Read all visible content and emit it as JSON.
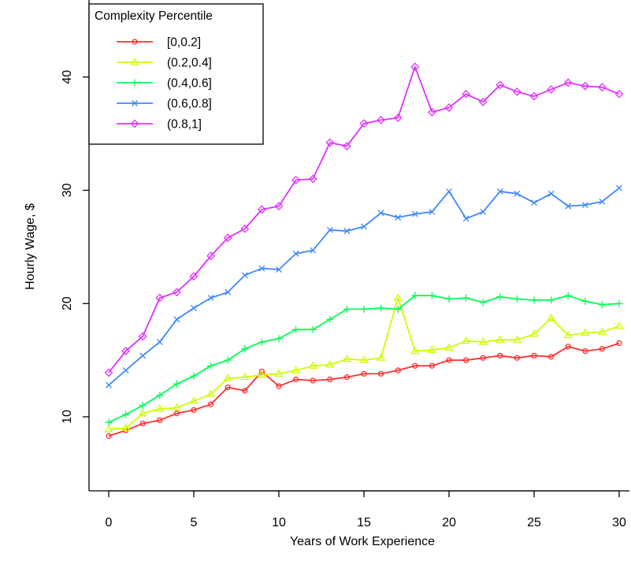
{
  "chart_data": {
    "type": "line",
    "title": "",
    "xlabel": "Years of Work Experience",
    "ylabel": "Hourly Wage, $",
    "xlim": [
      -1.2,
      31.2
    ],
    "ylim": [
      3.3,
      45.5
    ],
    "x_ticks": [
      0,
      5,
      10,
      15,
      20,
      25,
      30
    ],
    "y_ticks": [
      10,
      20,
      30,
      40
    ],
    "legend_title": "Complexity Percentile",
    "legend_position": "top-left",
    "grid": false,
    "x": [
      0,
      1,
      2,
      3,
      4,
      5,
      6,
      7,
      8,
      9,
      10,
      11,
      12,
      13,
      14,
      15,
      16,
      17,
      18,
      19,
      20,
      21,
      22,
      23,
      24,
      25,
      26,
      27,
      28,
      29,
      30
    ],
    "series": [
      {
        "name": "[0,0.2]",
        "color": "#ff3030",
        "marker": "circle",
        "values": [
          8.3,
          8.8,
          9.4,
          9.7,
          10.3,
          10.6,
          11.1,
          12.6,
          12.3,
          14.0,
          12.7,
          13.3,
          13.2,
          13.3,
          13.5,
          13.8,
          13.8,
          14.1,
          14.5,
          14.5,
          15.0,
          15.0,
          15.2,
          15.4,
          15.2,
          15.4,
          15.3,
          16.2,
          15.8,
          16.0,
          16.5
        ]
      },
      {
        "name": "(0.2,0.4]",
        "color": "#ccff00",
        "marker": "triangle",
        "values": [
          8.9,
          9.0,
          10.3,
          10.7,
          10.8,
          11.4,
          12.0,
          13.4,
          13.5,
          13.7,
          13.8,
          14.1,
          14.5,
          14.6,
          15.1,
          15.0,
          15.2,
          20.5,
          15.8,
          15.9,
          16.1,
          16.7,
          16.6,
          16.8,
          16.8,
          17.3,
          18.7,
          17.2,
          17.4,
          17.5,
          18.0
        ]
      },
      {
        "name": "(0.4,0.6]",
        "color": "#00ff55",
        "marker": "plus",
        "values": [
          9.5,
          10.2,
          11.0,
          11.9,
          12.9,
          13.6,
          14.5,
          15.0,
          16.0,
          16.6,
          16.9,
          17.7,
          17.7,
          18.6,
          19.5,
          19.5,
          19.6,
          19.5,
          20.7,
          20.7,
          20.4,
          20.5,
          20.1,
          20.6,
          20.4,
          20.3,
          20.3,
          20.7,
          20.2,
          19.9,
          20.0
        ]
      },
      {
        "name": "(0.6,0.8]",
        "color": "#3f88ff",
        "marker": "cross",
        "values": [
          12.8,
          14.1,
          15.4,
          16.6,
          18.6,
          19.6,
          20.5,
          21.0,
          22.5,
          23.1,
          23.0,
          24.4,
          24.7,
          26.5,
          26.4,
          26.8,
          28.0,
          27.6,
          27.9,
          28.1,
          29.9,
          27.5,
          28.1,
          29.9,
          29.7,
          28.9,
          29.7,
          28.6,
          28.7,
          29.0,
          30.2
        ]
      },
      {
        "name": "(0.8,1]",
        "color": "#e030ff",
        "marker": "diamond",
        "values": [
          13.9,
          15.8,
          17.1,
          20.5,
          21.0,
          22.4,
          24.2,
          25.8,
          26.6,
          28.3,
          28.6,
          30.9,
          31.0,
          34.2,
          33.9,
          35.9,
          36.2,
          36.4,
          40.9,
          36.9,
          37.3,
          38.5,
          37.8,
          39.3,
          38.7,
          38.3,
          38.9,
          39.5,
          39.2,
          39.1,
          38.5
        ]
      }
    ]
  }
}
